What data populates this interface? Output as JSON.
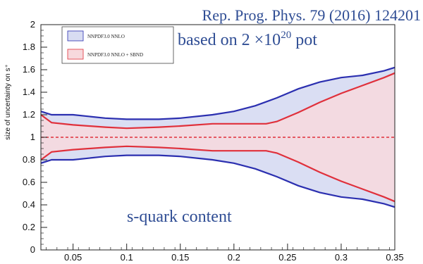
{
  "chart_data": {
    "type": "area",
    "title": "",
    "xlabel": "",
    "ylabel": "size of uncertainty on s⁺",
    "xlim": [
      0.02,
      0.35
    ],
    "ylim": [
      0,
      2
    ],
    "x_ticks": [
      "0.05",
      "0.1",
      "0.15",
      "0.2",
      "0.25",
      "0.3",
      "0.35"
    ],
    "y_ticks": [
      "0",
      "0.2",
      "0.4",
      "0.6",
      "0.8",
      "1",
      "1.2",
      "1.4",
      "1.6",
      "1.8",
      "2"
    ],
    "reference_line": 1.0,
    "legend_position": "top-left",
    "series": [
      {
        "name": "NNPDF3.0 NNLO",
        "color": "#2b2fb0",
        "fill": "#d8dcf2",
        "x": [
          0.02,
          0.03,
          0.05,
          0.08,
          0.1,
          0.13,
          0.15,
          0.18,
          0.2,
          0.22,
          0.24,
          0.26,
          0.28,
          0.3,
          0.32,
          0.34,
          0.35
        ],
        "upper": [
          1.23,
          1.2,
          1.2,
          1.17,
          1.16,
          1.16,
          1.17,
          1.2,
          1.23,
          1.28,
          1.35,
          1.43,
          1.49,
          1.53,
          1.55,
          1.59,
          1.62
        ],
        "lower": [
          0.77,
          0.8,
          0.8,
          0.83,
          0.84,
          0.84,
          0.83,
          0.8,
          0.77,
          0.72,
          0.65,
          0.57,
          0.51,
          0.47,
          0.45,
          0.41,
          0.38
        ]
      },
      {
        "name": "NNPDF3.0 NNLO + SBND",
        "color": "#e0303b",
        "fill": "#f7d9dd",
        "x": [
          0.02,
          0.03,
          0.05,
          0.08,
          0.1,
          0.13,
          0.15,
          0.18,
          0.2,
          0.23,
          0.24,
          0.26,
          0.28,
          0.3,
          0.32,
          0.34,
          0.35
        ],
        "upper": [
          1.2,
          1.13,
          1.11,
          1.09,
          1.08,
          1.09,
          1.1,
          1.12,
          1.12,
          1.12,
          1.14,
          1.22,
          1.31,
          1.39,
          1.46,
          1.53,
          1.57
        ],
        "lower": [
          0.8,
          0.87,
          0.89,
          0.91,
          0.92,
          0.91,
          0.9,
          0.88,
          0.88,
          0.88,
          0.86,
          0.78,
          0.69,
          0.61,
          0.54,
          0.47,
          0.43
        ]
      }
    ],
    "annotations": {
      "reference": "Rep. Prog. Phys. 79 (2016) 124201",
      "pot_prefix": "based on 2 ×10",
      "pot_exponent": "20",
      "pot_suffix": " pot",
      "content": "s-quark content"
    }
  }
}
